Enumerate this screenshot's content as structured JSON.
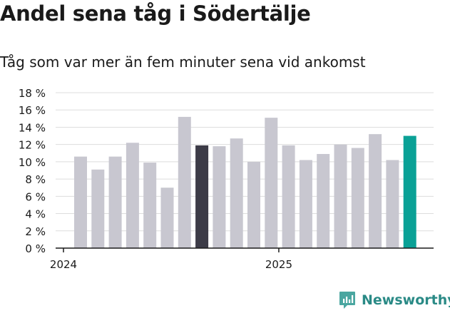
{
  "title": "Andel sena tåg i Södertälje",
  "subtitle": "Tåg som var mer än fem minuter sena vid ankomst",
  "brand": {
    "name": "Newsworthy",
    "color": "#2a8a86"
  },
  "colors": {
    "bar": "#c8c7d0",
    "highlight_dark": "#3c3b47",
    "highlight_accent": "#0aa196",
    "grid": "#dddddd",
    "axis": "#1a1a1a"
  },
  "chart_data": {
    "type": "bar",
    "title": "Andel sena tåg i Södertälje",
    "subtitle": "Tåg som var mer än fem minuter sena vid ankomst",
    "xlabel": "",
    "ylabel": "",
    "ylim": [
      0,
      18
    ],
    "yticks": [
      0,
      2,
      4,
      6,
      8,
      10,
      12,
      14,
      16,
      18
    ],
    "ytick_labels": [
      "0 %",
      "2 %",
      "4 %",
      "6 %",
      "8 %",
      "10 %",
      "12 %",
      "14 %",
      "16 %",
      "18 %"
    ],
    "x_tick_labels": [
      {
        "label": "2024",
        "index": 0
      },
      {
        "label": "2025",
        "index": 12
      }
    ],
    "values": [
      10.6,
      9.1,
      10.6,
      12.2,
      9.9,
      7.0,
      15.2,
      11.9,
      11.8,
      12.7,
      10.0,
      15.1,
      11.9,
      10.2,
      10.9,
      12.0,
      11.6,
      13.2,
      10.2,
      13.0
    ],
    "highlights": [
      {
        "index": 7,
        "color_key": "highlight_dark"
      },
      {
        "index": 19,
        "color_key": "highlight_accent"
      }
    ],
    "grid": true
  }
}
